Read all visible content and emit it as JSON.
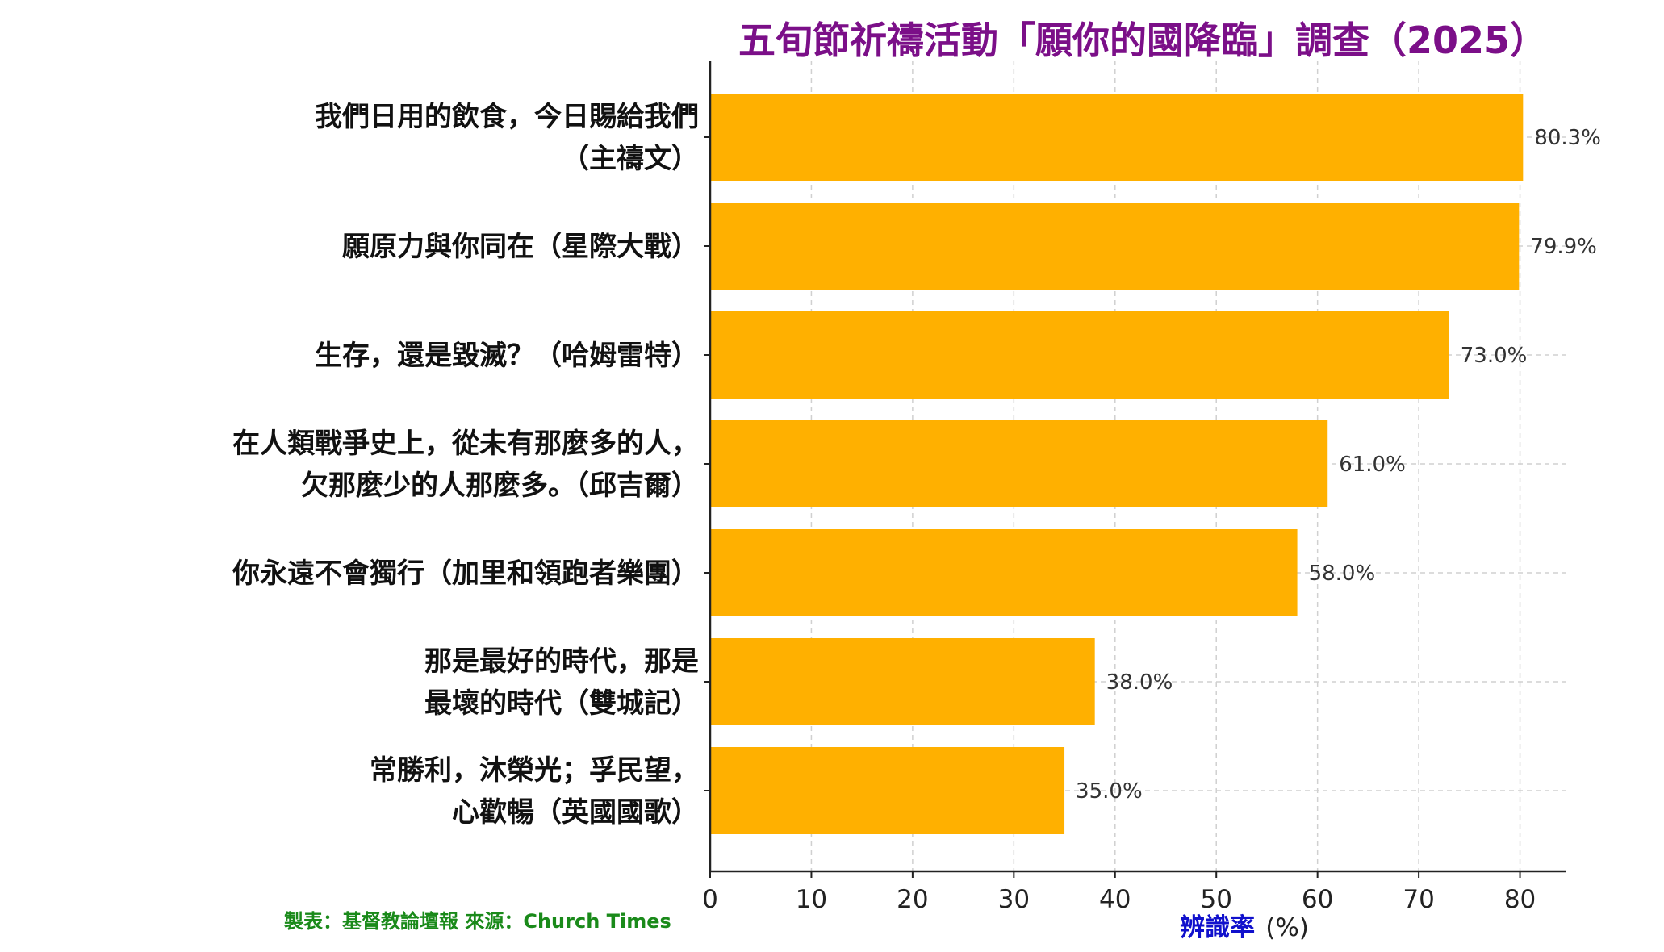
{
  "chart_data": {
    "type": "bar",
    "orientation": "horizontal",
    "title": "五旬節祈禱活動「願你的國降臨」調查（2025）",
    "categories": [
      [
        "我們日用的飲食，今日賜給我們",
        "（主禱文）"
      ],
      [
        "願原力與你同在（星際大戰）"
      ],
      [
        "生存，還是毀滅？（哈姆雷特）"
      ],
      [
        "在人類戰爭史上，從未有那麼多的人，",
        "欠那麼少的人那麼多。（邱吉爾）"
      ],
      [
        "你永遠不會獨行（加里和領跑者樂團）"
      ],
      [
        "那是最好的時代，那是",
        "最壞的時代（雙城記）"
      ],
      [
        "常勝利，沐榮光；孚民望，",
        "心歡暢（英國國歌）"
      ]
    ],
    "values": [
      80.3,
      79.9,
      73.0,
      61.0,
      58.0,
      38.0,
      35.0
    ],
    "value_labels": [
      "80.3%",
      "79.9%",
      "73.0%",
      "61.0%",
      "58.0%",
      "38.0%",
      "35.0%"
    ],
    "xlabel": "辨識率",
    "xlabel_unit": "(%)",
    "xlim": [
      0,
      84.5
    ],
    "xticks": [
      0,
      10,
      20,
      30,
      40,
      50,
      60,
      70,
      80
    ],
    "grid": true,
    "bar_color": "#ffb000",
    "title_color": "#7b0f88",
    "xlabel_color": "#1010cc",
    "source_color": "#1a8a1a"
  },
  "source": "製表：基督教論壇報  來源：Church Times"
}
